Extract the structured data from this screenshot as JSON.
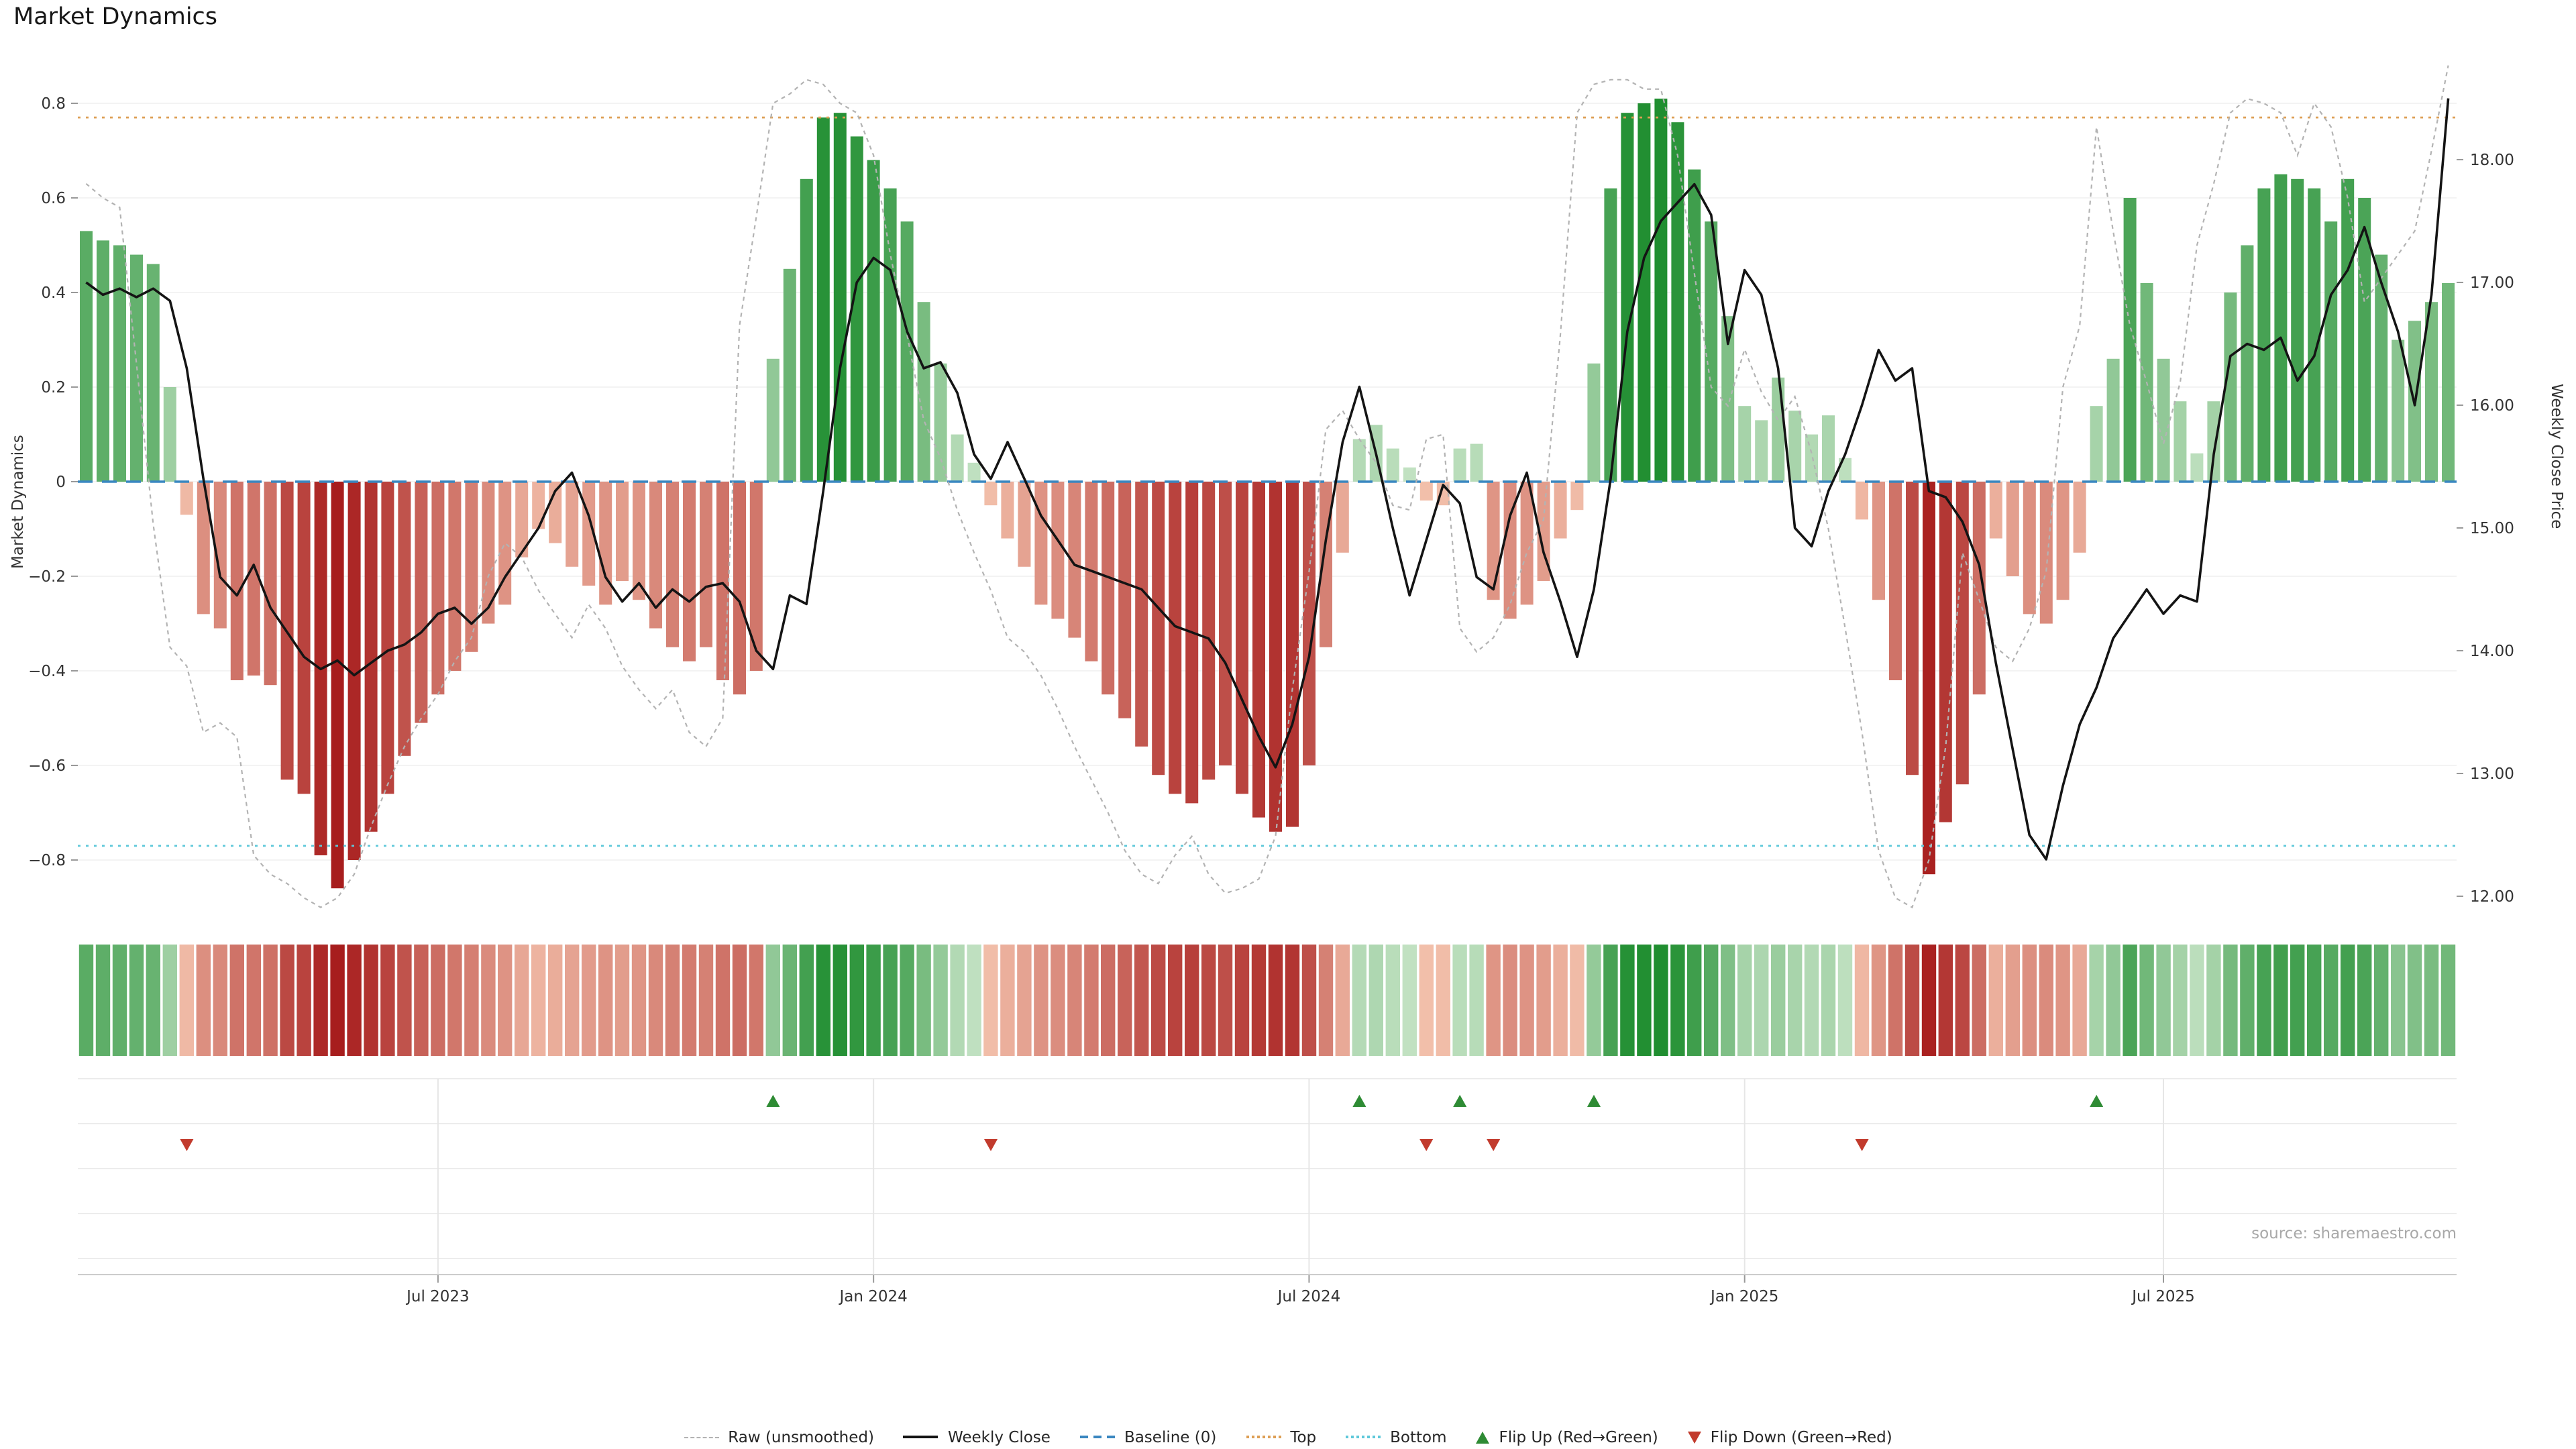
{
  "title": "Market Dynamics",
  "source": "source: sharemaestro.com",
  "legend": {
    "items": [
      {
        "label": "Raw (unsmoothed)"
      },
      {
        "label": "Weekly Close"
      },
      {
        "label": "Baseline (0)"
      },
      {
        "label": "Top"
      },
      {
        "label": "Bottom"
      },
      {
        "label": "Flip Up (Red→Green)"
      },
      {
        "label": "Flip Down (Green→Red)"
      }
    ]
  },
  "chart_data": {
    "type": "combo-bar-line",
    "title": "Market Dynamics",
    "left_axis": {
      "title": "Market Dynamics",
      "range": [
        -0.9,
        0.9
      ],
      "ticks": [
        {
          "label": "0.8",
          "value": 0.8
        },
        {
          "label": "0.6",
          "value": 0.6
        },
        {
          "label": "0.4",
          "value": 0.4
        },
        {
          "label": "0.2",
          "value": 0.2
        },
        {
          "label": "0",
          "value": 0
        },
        {
          "label": "−0.2",
          "value": -0.2
        },
        {
          "label": "−0.4",
          "value": -0.4
        },
        {
          "label": "−0.6",
          "value": -0.6
        },
        {
          "label": "−0.8",
          "value": -0.8
        }
      ]
    },
    "right_axis": {
      "title": "Weekly Close Price",
      "range": [
        11.9,
        18.6
      ],
      "ticks": [
        {
          "label": "18.00",
          "value": 18
        },
        {
          "label": "17.00",
          "value": 17
        },
        {
          "label": "16.00",
          "value": 16
        },
        {
          "label": "15.00",
          "value": 15
        },
        {
          "label": "14.00",
          "value": 14
        },
        {
          "label": "13.00",
          "value": 13
        },
        {
          "label": "12.00",
          "value": 12
        }
      ]
    },
    "x_ticks": [
      {
        "label": "Jul 2023",
        "index": 21
      },
      {
        "label": "Jan 2024",
        "index": 47
      },
      {
        "label": "Jul 2024",
        "index": 73
      },
      {
        "label": "Jan 2025",
        "index": 99
      },
      {
        "label": "Jul 2025",
        "index": 124
      }
    ],
    "thresholds": {
      "baseline": 0,
      "top": 0.77,
      "bottom": -0.77
    },
    "series": [
      {
        "name": "Market Dynamics (weekly bars)",
        "type": "bar",
        "axis": "left",
        "values": [
          0.53,
          0.51,
          0.5,
          0.48,
          0.46,
          0.2,
          -0.07,
          -0.28,
          -0.31,
          -0.42,
          -0.41,
          -0.43,
          -0.63,
          -0.66,
          -0.79,
          -0.86,
          -0.8,
          -0.74,
          -0.66,
          -0.58,
          -0.51,
          -0.45,
          -0.4,
          -0.36,
          -0.3,
          -0.26,
          -0.16,
          -0.1,
          -0.13,
          -0.18,
          -0.22,
          -0.26,
          -0.21,
          -0.25,
          -0.31,
          -0.35,
          -0.38,
          -0.35,
          -0.42,
          -0.45,
          -0.4,
          0.26,
          0.45,
          0.64,
          0.77,
          0.78,
          0.73,
          0.68,
          0.62,
          0.55,
          0.38,
          0.25,
          0.1,
          0.04,
          -0.05,
          -0.12,
          -0.18,
          -0.26,
          -0.29,
          -0.33,
          -0.38,
          -0.45,
          -0.5,
          -0.56,
          -0.62,
          -0.66,
          -0.68,
          -0.63,
          -0.6,
          -0.66,
          -0.71,
          -0.74,
          -0.73,
          -0.6,
          -0.35,
          -0.15,
          0.09,
          0.12,
          0.07,
          0.03,
          -0.04,
          -0.05,
          0.07,
          0.08,
          -0.25,
          -0.29,
          -0.26,
          -0.21,
          -0.12,
          -0.06,
          0.25,
          0.62,
          0.78,
          0.8,
          0.81,
          0.76,
          0.66,
          0.55,
          0.35,
          0.16,
          0.13,
          0.22,
          0.15,
          0.1,
          0.14,
          0.05,
          -0.08,
          -0.25,
          -0.42,
          -0.62,
          -0.83,
          -0.72,
          -0.64,
          -0.45,
          -0.12,
          -0.2,
          -0.28,
          -0.3,
          -0.25,
          -0.15,
          0.16,
          0.26,
          0.6,
          0.42,
          0.26,
          0.17,
          0.06,
          0.17,
          0.4,
          0.5,
          0.62,
          0.65,
          0.64,
          0.62,
          0.55,
          0.64,
          0.6,
          0.48,
          0.3,
          0.34,
          0.38,
          0.42
        ]
      },
      {
        "name": "Raw (unsmoothed)",
        "type": "line",
        "axis": "left",
        "values": [
          0.63,
          0.6,
          0.58,
          0.25,
          -0.09,
          -0.35,
          -0.39,
          -0.53,
          -0.51,
          -0.54,
          -0.79,
          -0.83,
          -0.85,
          -0.88,
          -0.9,
          -0.88,
          -0.83,
          -0.73,
          -0.64,
          -0.56,
          -0.5,
          -0.45,
          -0.38,
          -0.33,
          -0.2,
          -0.13,
          -0.16,
          -0.23,
          -0.28,
          -0.33,
          -0.26,
          -0.31,
          -0.39,
          -0.44,
          -0.48,
          -0.44,
          -0.53,
          -0.56,
          -0.5,
          0.33,
          0.56,
          0.8,
          0.82,
          0.85,
          0.84,
          0.8,
          0.78,
          0.69,
          0.48,
          0.31,
          0.13,
          0.05,
          -0.06,
          -0.15,
          -0.23,
          -0.33,
          -0.36,
          -0.41,
          -0.48,
          -0.56,
          -0.63,
          -0.7,
          -0.78,
          -0.83,
          -0.85,
          -0.79,
          -0.75,
          -0.83,
          -0.87,
          -0.86,
          -0.84,
          -0.75,
          -0.44,
          -0.19,
          0.11,
          0.15,
          0.09,
          0.04,
          -0.05,
          -0.06,
          0.09,
          0.1,
          -0.31,
          -0.36,
          -0.33,
          -0.26,
          -0.15,
          -0.08,
          0.31,
          0.78,
          0.84,
          0.85,
          0.85,
          0.83,
          0.83,
          0.69,
          0.44,
          0.2,
          0.16,
          0.28,
          0.19,
          0.13,
          0.18,
          0.06,
          -0.1,
          -0.31,
          -0.53,
          -0.78,
          -0.88,
          -0.9,
          -0.8,
          -0.56,
          -0.15,
          -0.25,
          -0.35,
          -0.38,
          -0.31,
          -0.19,
          0.2,
          0.33,
          0.75,
          0.53,
          0.33,
          0.21,
          0.08,
          0.21,
          0.5,
          0.63,
          0.78,
          0.81,
          0.8,
          0.78,
          0.69,
          0.8,
          0.75,
          0.6,
          0.38,
          0.43,
          0.48,
          0.53,
          0.7,
          0.88
        ]
      },
      {
        "name": "Weekly Close",
        "type": "line",
        "axis": "right",
        "values": [
          17.0,
          16.9,
          16.95,
          16.88,
          16.95,
          16.85,
          16.3,
          15.4,
          14.6,
          14.45,
          14.7,
          14.35,
          14.15,
          13.95,
          13.85,
          13.92,
          13.8,
          13.9,
          14.0,
          14.05,
          14.15,
          14.3,
          14.35,
          14.22,
          14.35,
          14.6,
          14.8,
          15.0,
          15.3,
          15.45,
          15.1,
          14.6,
          14.4,
          14.55,
          14.35,
          14.5,
          14.4,
          14.52,
          14.55,
          14.4,
          14.0,
          13.85,
          14.45,
          14.38,
          15.3,
          16.3,
          17.0,
          17.2,
          17.1,
          16.6,
          16.3,
          16.35,
          16.1,
          15.6,
          15.4,
          15.7,
          15.4,
          15.1,
          14.9,
          14.7,
          14.65,
          14.6,
          14.55,
          14.5,
          14.35,
          14.2,
          14.15,
          14.1,
          13.9,
          13.6,
          13.3,
          13.05,
          13.4,
          13.95,
          14.9,
          15.7,
          16.15,
          15.6,
          15.0,
          14.45,
          14.9,
          15.35,
          15.2,
          14.6,
          14.5,
          15.1,
          15.45,
          14.8,
          14.4,
          13.95,
          14.5,
          15.4,
          16.6,
          17.2,
          17.5,
          17.65,
          17.8,
          17.55,
          16.5,
          17.1,
          16.9,
          16.3,
          15.0,
          14.85,
          15.3,
          15.6,
          16.0,
          16.45,
          16.2,
          16.3,
          15.3,
          15.25,
          15.05,
          14.7,
          13.9,
          13.2,
          12.5,
          12.3,
          12.9,
          13.4,
          13.7,
          14.1,
          14.3,
          14.5,
          14.3,
          14.45,
          14.4,
          15.6,
          16.4,
          16.5,
          16.45,
          16.55,
          16.2,
          16.4,
          16.9,
          17.1,
          17.45,
          17.0,
          16.6,
          16.0,
          16.9,
          18.5
        ]
      }
    ],
    "flip_up_indices": [
      41,
      76,
      82,
      90,
      120
    ],
    "flip_down_indices": [
      6,
      54,
      80,
      84,
      106
    ],
    "heatmap": {
      "note": "strip mirrors weekly bar values as red/green intensity cells"
    },
    "colors": {
      "positive_strong": "#188a29",
      "positive_weak": "#c7e4c7",
      "negative_strong": "#a71d1d",
      "negative_weak": "#f6c7b1",
      "baseline": "#3a87c0",
      "top": "#dd9f55",
      "bottom": "#5ec8da",
      "weekly_close": "#141414",
      "raw": "#b3b3b3",
      "flip_up": "#2e8b34",
      "flip_down": "#c23b2d"
    },
    "legend_position": "bottom-center",
    "grid": "light horizontal gridlines in oscillator pane; row/column gridlines in marker pane"
  }
}
